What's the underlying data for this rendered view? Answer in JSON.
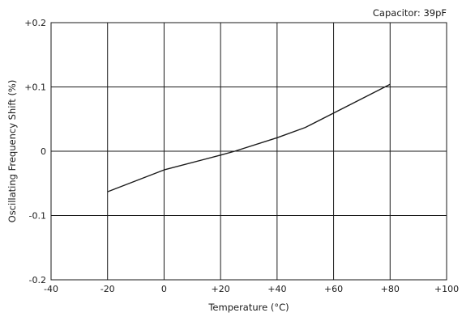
{
  "chart_data": {
    "type": "line",
    "title": "",
    "annotation": "Capacitor: 39pF",
    "xlabel": "Temperature (°C)",
    "ylabel": "Oscillating Frequency Shift (%)",
    "xlim": [
      -40,
      100
    ],
    "ylim": [
      -0.2,
      0.2
    ],
    "x_ticks": [
      -40,
      -20,
      0,
      20,
      40,
      60,
      80,
      100
    ],
    "x_tick_labels": [
      "-40",
      "-20",
      "0",
      "+20",
      "+40",
      "+60",
      "+80",
      "+100"
    ],
    "y_ticks": [
      0.2,
      0.1,
      0,
      -0.1,
      -0.2
    ],
    "y_tick_labels": [
      "+0.2",
      "+0.1",
      "0",
      "-0.1",
      "-0.2"
    ],
    "grid": true,
    "series": [
      {
        "x": [
          -20,
          0,
          20,
          25,
          40,
          50,
          80
        ],
        "y": [
          -0.063,
          -0.029,
          -0.006,
          0.0,
          0.021,
          0.037,
          0.104
        ]
      }
    ],
    "colors": {
      "line": "#1a1a1a",
      "grid": "#1a1a1a",
      "frame": "#1a1a1a"
    }
  }
}
